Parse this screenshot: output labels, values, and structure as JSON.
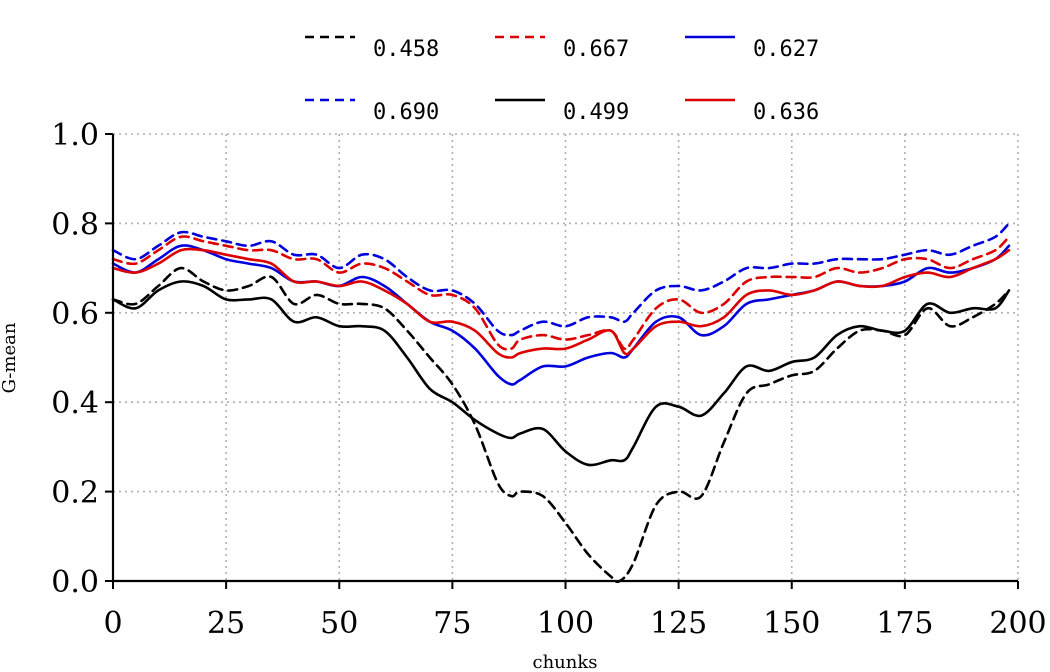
{
  "chart_data": {
    "type": "line",
    "xlabel": "chunks",
    "ylabel": "G-mean",
    "xlim": [
      0,
      200
    ],
    "ylim": [
      0.0,
      1.0
    ],
    "xticks": [
      0,
      25,
      50,
      75,
      100,
      125,
      150,
      175,
      200
    ],
    "yticks": [
      0.0,
      0.2,
      0.4,
      0.6,
      0.8,
      1.0
    ],
    "xtick_labels": [
      "0",
      "25",
      "50",
      "75",
      "100",
      "125",
      "150",
      "175",
      "200"
    ],
    "ytick_labels": [
      "0.0",
      "0.2",
      "0.4",
      "0.6",
      "0.8",
      "1.0"
    ],
    "grid": true,
    "legend_position": "top-center",
    "legend_columns": 3,
    "series": [
      {
        "name": "0.458",
        "color": "#000000",
        "style": "dashed",
        "x": [
          0,
          5,
          10,
          15,
          20,
          25,
          30,
          35,
          40,
          45,
          50,
          55,
          60,
          65,
          70,
          75,
          80,
          85,
          88,
          90,
          95,
          100,
          105,
          110,
          112,
          115,
          120,
          125,
          130,
          135,
          140,
          145,
          150,
          155,
          160,
          165,
          170,
          175,
          180,
          185,
          190,
          195,
          198
        ],
        "y": [
          0.63,
          0.62,
          0.66,
          0.7,
          0.67,
          0.65,
          0.66,
          0.68,
          0.62,
          0.64,
          0.62,
          0.62,
          0.61,
          0.56,
          0.5,
          0.44,
          0.35,
          0.22,
          0.19,
          0.2,
          0.19,
          0.13,
          0.06,
          0.01,
          0.0,
          0.04,
          0.17,
          0.2,
          0.19,
          0.31,
          0.42,
          0.44,
          0.46,
          0.47,
          0.52,
          0.56,
          0.56,
          0.55,
          0.61,
          0.57,
          0.59,
          0.62,
          0.65
        ]
      },
      {
        "name": "0.667",
        "color": "#dd0000",
        "style": "dashed",
        "x": [
          0,
          5,
          10,
          15,
          20,
          25,
          30,
          35,
          40,
          45,
          50,
          55,
          60,
          65,
          70,
          75,
          80,
          85,
          88,
          90,
          95,
          100,
          105,
          110,
          113,
          115,
          120,
          125,
          130,
          135,
          140,
          145,
          150,
          155,
          160,
          165,
          170,
          175,
          180,
          185,
          190,
          195,
          198
        ],
        "y": [
          0.72,
          0.71,
          0.74,
          0.77,
          0.76,
          0.75,
          0.74,
          0.74,
          0.72,
          0.72,
          0.69,
          0.71,
          0.7,
          0.67,
          0.64,
          0.64,
          0.61,
          0.53,
          0.52,
          0.54,
          0.55,
          0.54,
          0.55,
          0.56,
          0.52,
          0.54,
          0.61,
          0.63,
          0.6,
          0.62,
          0.67,
          0.68,
          0.68,
          0.68,
          0.7,
          0.69,
          0.7,
          0.72,
          0.72,
          0.7,
          0.72,
          0.74,
          0.77
        ]
      },
      {
        "name": "0.627",
        "color": "#0000dd",
        "style": "solid",
        "x": [
          0,
          5,
          10,
          15,
          20,
          25,
          30,
          35,
          40,
          45,
          50,
          55,
          60,
          65,
          70,
          75,
          80,
          85,
          88,
          90,
          95,
          100,
          105,
          110,
          113,
          115,
          120,
          125,
          130,
          135,
          140,
          145,
          150,
          155,
          160,
          165,
          170,
          175,
          180,
          185,
          190,
          195,
          198
        ],
        "y": [
          0.71,
          0.69,
          0.72,
          0.75,
          0.74,
          0.72,
          0.71,
          0.7,
          0.67,
          0.67,
          0.66,
          0.68,
          0.66,
          0.62,
          0.58,
          0.56,
          0.52,
          0.46,
          0.44,
          0.45,
          0.48,
          0.48,
          0.5,
          0.51,
          0.5,
          0.52,
          0.58,
          0.59,
          0.55,
          0.57,
          0.62,
          0.63,
          0.64,
          0.65,
          0.67,
          0.66,
          0.66,
          0.67,
          0.7,
          0.69,
          0.7,
          0.72,
          0.75
        ]
      },
      {
        "name": "0.690",
        "color": "#0000dd",
        "style": "dashed",
        "x": [
          0,
          5,
          10,
          15,
          20,
          25,
          30,
          35,
          40,
          45,
          50,
          55,
          60,
          65,
          70,
          75,
          80,
          85,
          88,
          90,
          95,
          100,
          105,
          110,
          113,
          115,
          120,
          125,
          130,
          135,
          140,
          145,
          150,
          155,
          160,
          165,
          170,
          175,
          180,
          185,
          190,
          195,
          198
        ],
        "y": [
          0.74,
          0.72,
          0.75,
          0.78,
          0.77,
          0.76,
          0.75,
          0.76,
          0.73,
          0.73,
          0.7,
          0.73,
          0.72,
          0.68,
          0.65,
          0.65,
          0.62,
          0.56,
          0.55,
          0.56,
          0.58,
          0.57,
          0.59,
          0.59,
          0.58,
          0.6,
          0.65,
          0.66,
          0.65,
          0.67,
          0.7,
          0.7,
          0.71,
          0.71,
          0.72,
          0.72,
          0.72,
          0.73,
          0.74,
          0.73,
          0.75,
          0.77,
          0.8
        ]
      },
      {
        "name": "0.499",
        "color": "#000000",
        "style": "solid",
        "x": [
          0,
          5,
          10,
          15,
          20,
          25,
          30,
          35,
          40,
          45,
          50,
          55,
          60,
          65,
          70,
          75,
          80,
          85,
          88,
          90,
          95,
          100,
          105,
          110,
          113,
          115,
          120,
          125,
          130,
          135,
          140,
          145,
          150,
          155,
          160,
          165,
          170,
          175,
          180,
          185,
          190,
          195,
          198
        ],
        "y": [
          0.63,
          0.61,
          0.65,
          0.67,
          0.66,
          0.63,
          0.63,
          0.63,
          0.58,
          0.59,
          0.57,
          0.57,
          0.56,
          0.5,
          0.43,
          0.4,
          0.36,
          0.33,
          0.32,
          0.33,
          0.34,
          0.29,
          0.26,
          0.27,
          0.27,
          0.3,
          0.39,
          0.39,
          0.37,
          0.42,
          0.48,
          0.47,
          0.49,
          0.5,
          0.55,
          0.57,
          0.56,
          0.56,
          0.62,
          0.6,
          0.61,
          0.61,
          0.65
        ]
      },
      {
        "name": "0.636",
        "color": "#dd0000",
        "style": "solid",
        "x": [
          0,
          5,
          10,
          15,
          20,
          25,
          30,
          35,
          40,
          45,
          50,
          55,
          60,
          65,
          70,
          75,
          80,
          85,
          88,
          90,
          95,
          100,
          105,
          110,
          113,
          115,
          120,
          125,
          130,
          135,
          140,
          145,
          150,
          155,
          160,
          165,
          170,
          175,
          180,
          185,
          190,
          195,
          198
        ],
        "y": [
          0.7,
          0.69,
          0.71,
          0.74,
          0.74,
          0.73,
          0.72,
          0.71,
          0.67,
          0.67,
          0.66,
          0.67,
          0.65,
          0.62,
          0.58,
          0.58,
          0.56,
          0.51,
          0.5,
          0.51,
          0.52,
          0.52,
          0.54,
          0.56,
          0.51,
          0.52,
          0.57,
          0.58,
          0.57,
          0.59,
          0.64,
          0.65,
          0.64,
          0.65,
          0.67,
          0.66,
          0.66,
          0.68,
          0.69,
          0.68,
          0.7,
          0.72,
          0.74
        ]
      }
    ]
  }
}
